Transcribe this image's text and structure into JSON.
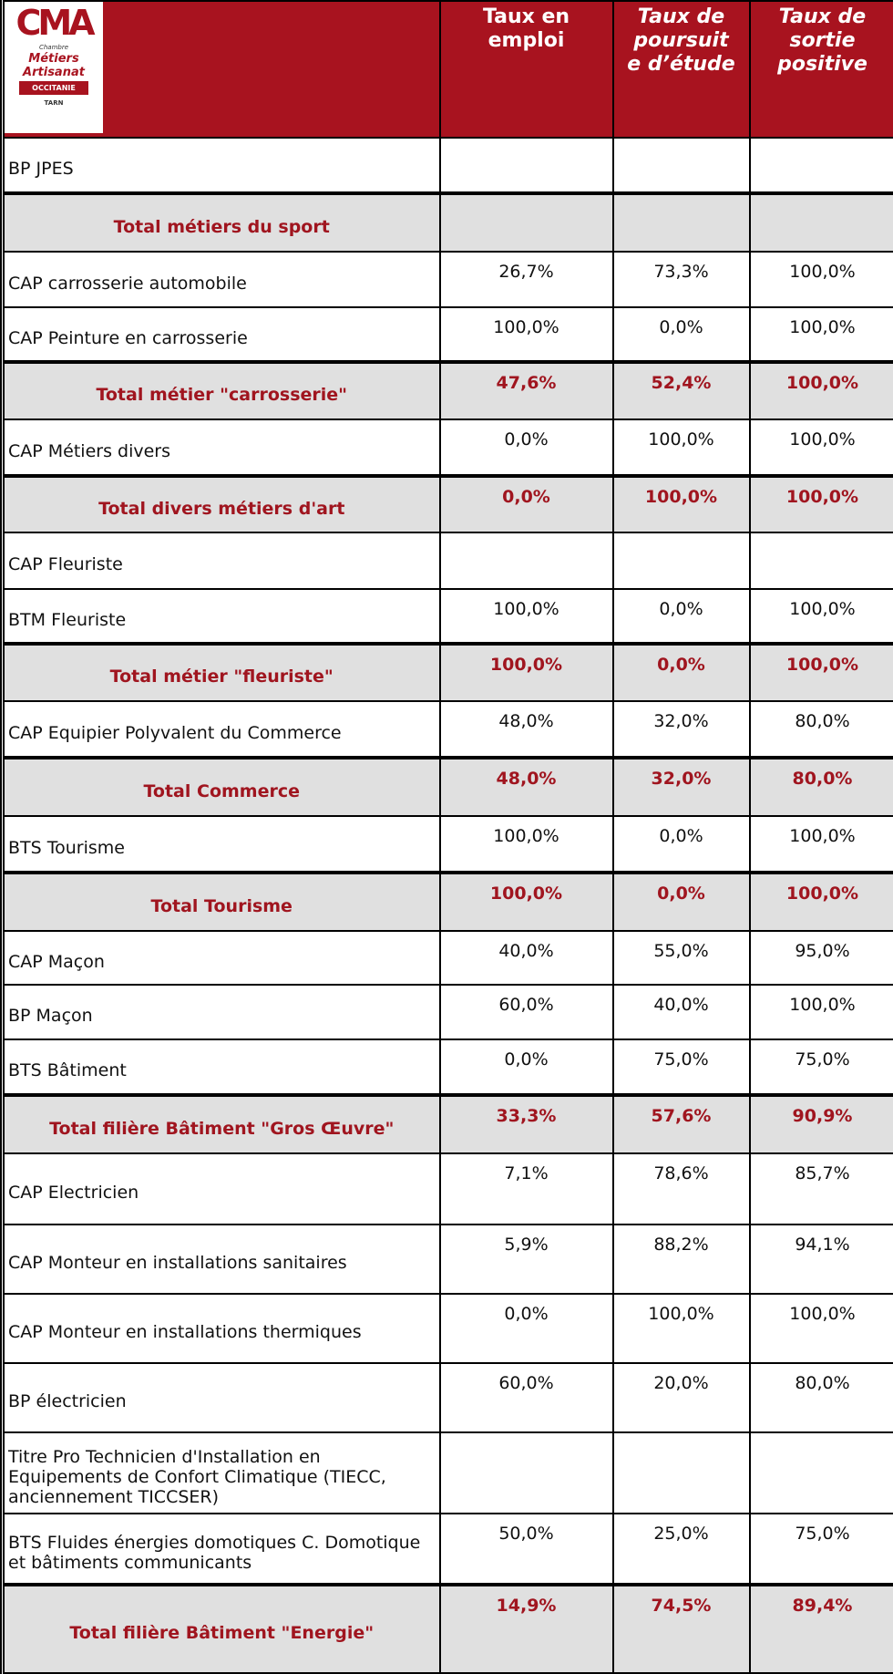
{
  "logo": {
    "mark": "CMA",
    "lines": [
      "Chambre",
      "Métiers",
      "Artisanat",
      "OCCITANIE",
      "TARN"
    ]
  },
  "table": {
    "header": [
      [
        "Taux en",
        "emploi"
      ],
      [
        "Taux de",
        "poursuit",
        "e d’étude"
      ],
      [
        "Taux de",
        "sortie",
        "positive"
      ]
    ],
    "rows": [
      {
        "cells": [
          "BP JPES",
          null,
          null,
          null
        ]
      },
      {
        "cells": [
          "Total métiers du sport",
          null,
          null,
          null
        ],
        "total": true
      },
      {
        "cells": [
          "CAP carrosserie automobile",
          "26,7%",
          "73,3%",
          "100,0%"
        ]
      },
      {
        "cells": [
          "CAP Peinture en carrosserie",
          "100,0%",
          "0,0%",
          "100,0%"
        ]
      },
      {
        "cells": [
          "Total métier \"carrosserie\"",
          "47,6%",
          "52,4%",
          "100,0%"
        ],
        "total": true
      },
      {
        "cells": [
          "CAP Métiers divers",
          "0,0%",
          "100,0%",
          "100,0%"
        ]
      },
      {
        "cells": [
          "Total divers métiers d'art",
          "0,0%",
          "100,0%",
          "100,0%"
        ],
        "total": true
      },
      {
        "cells": [
          "CAP Fleuriste",
          null,
          null,
          null
        ]
      },
      {
        "cells": [
          "BTM Fleuriste",
          "100,0%",
          "0,0%",
          "100,0%"
        ]
      },
      {
        "cells": [
          "Total métier \"fleuriste\"",
          "100,0%",
          "0,0%",
          "100,0%"
        ],
        "total": true
      },
      {
        "cells": [
          "CAP Equipier Polyvalent du Commerce",
          "48,0%",
          "32,0%",
          "80,0%"
        ]
      },
      {
        "cells": [
          "Total  Commerce",
          "48,0%",
          "32,0%",
          "80,0%"
        ],
        "total": true
      },
      {
        "cells": [
          "BTS Tourisme",
          "100,0%",
          "0,0%",
          "100,0%"
        ]
      },
      {
        "cells": [
          "Total  Tourisme",
          "100,0%",
          "0,0%",
          "100,0%"
        ],
        "total": true
      },
      {
        "cells": [
          "CAP Maçon",
          "40,0%",
          "55,0%",
          "95,0%"
        ]
      },
      {
        "cells": [
          "BP Maçon",
          "60,0%",
          "40,0%",
          "100,0%"
        ]
      },
      {
        "cells": [
          "BTS Bâtiment",
          "0,0%",
          "75,0%",
          "75,0%"
        ]
      },
      {
        "cells": [
          "Total filière Bâtiment \"Gros Œuvre\"",
          "33,3%",
          "57,6%",
          "90,9%"
        ],
        "total": true
      },
      {
        "cells": [
          "CAP Electricien",
          "7,1%",
          "78,6%",
          "85,7%"
        ]
      },
      {
        "cells": [
          "CAP Monteur en installations sanitaires",
          "5,9%",
          "88,2%",
          "94,1%"
        ]
      },
      {
        "cells": [
          "CAP Monteur en installations thermiques",
          "0,0%",
          "100,0%",
          "100,0%"
        ]
      },
      {
        "cells": [
          "BP électricien",
          "60,0%",
          "20,0%",
          "80,0%"
        ]
      },
      {
        "cells": [
          "Titre Pro Technicien d'Installation en Equipements de Confort Climatique (TIECC, anciennement TICCSER)",
          null,
          null,
          null
        ]
      },
      {
        "cells": [
          "BTS Fluides énergies domotiques C. Domotique et bâtiments communicants",
          "50,0%",
          "25,0%",
          "75,0%"
        ]
      },
      {
        "cells": [
          "Total filière Bâtiment \"Energie\"",
          "14,9%",
          "74,5%",
          "89,4%"
        ],
        "total": true
      }
    ]
  }
}
